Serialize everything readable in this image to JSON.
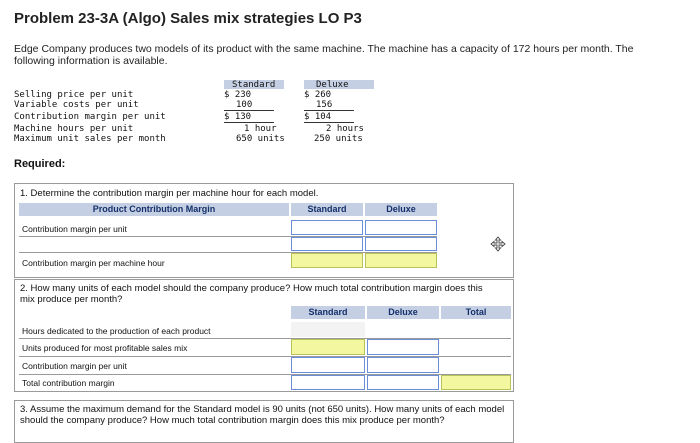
{
  "title": "Problem 23-3A (Algo) Sales mix strategies LO P3",
  "intro": "Edge Company produces two models of its product with the same machine. The machine has a capacity of 172 hours per month. The following information is available.",
  "given": {
    "col_standard": "Standard",
    "col_deluxe": "Deluxe",
    "rows": [
      {
        "label": "Selling price per unit",
        "standard": "$ 230",
        "deluxe": "$ 260"
      },
      {
        "label": "Variable costs per unit",
        "standard": "100",
        "deluxe": "156"
      },
      {
        "label": "Contribution margin per unit",
        "standard": "$ 130",
        "deluxe": "$ 104"
      },
      {
        "label": "Machine hours per unit",
        "standard": "1 hour",
        "deluxe": "2 hours"
      },
      {
        "label": "Maximum unit sales per month",
        "standard": "650 units",
        "deluxe": "250 units"
      }
    ]
  },
  "required_label": "Required:",
  "part1": {
    "question": "1. Determine the contribution margin per machine hour for each model.",
    "header_label": "Product Contribution Margin",
    "col_standard": "Standard",
    "col_deluxe": "Deluxe",
    "rows": [
      "Contribution margin per unit",
      "",
      "Contribution margin per machine hour"
    ]
  },
  "part2": {
    "question": "2. How many units of each model should the company produce? How much total contribution margin does this mix produce per month?",
    "col_standard": "Standard",
    "col_deluxe": "Deluxe",
    "col_total": "Total",
    "rows": [
      "Hours dedicated to the production of each product",
      "Units produced for most profitable sales mix",
      "Contribution margin per unit",
      "Total contribution margin"
    ]
  },
  "part3": {
    "question": "3. Assume the maximum demand for the Standard model is 90 units (not 650 units). How many units of each model should the company produce? How much total contribution margin does this mix produce per month?"
  },
  "icons": {
    "move": "move-arrows-icon"
  },
  "colors": {
    "header": "#c5cfe3",
    "highlight": "#f2f7a0",
    "input_border": "#6b8fd6"
  }
}
